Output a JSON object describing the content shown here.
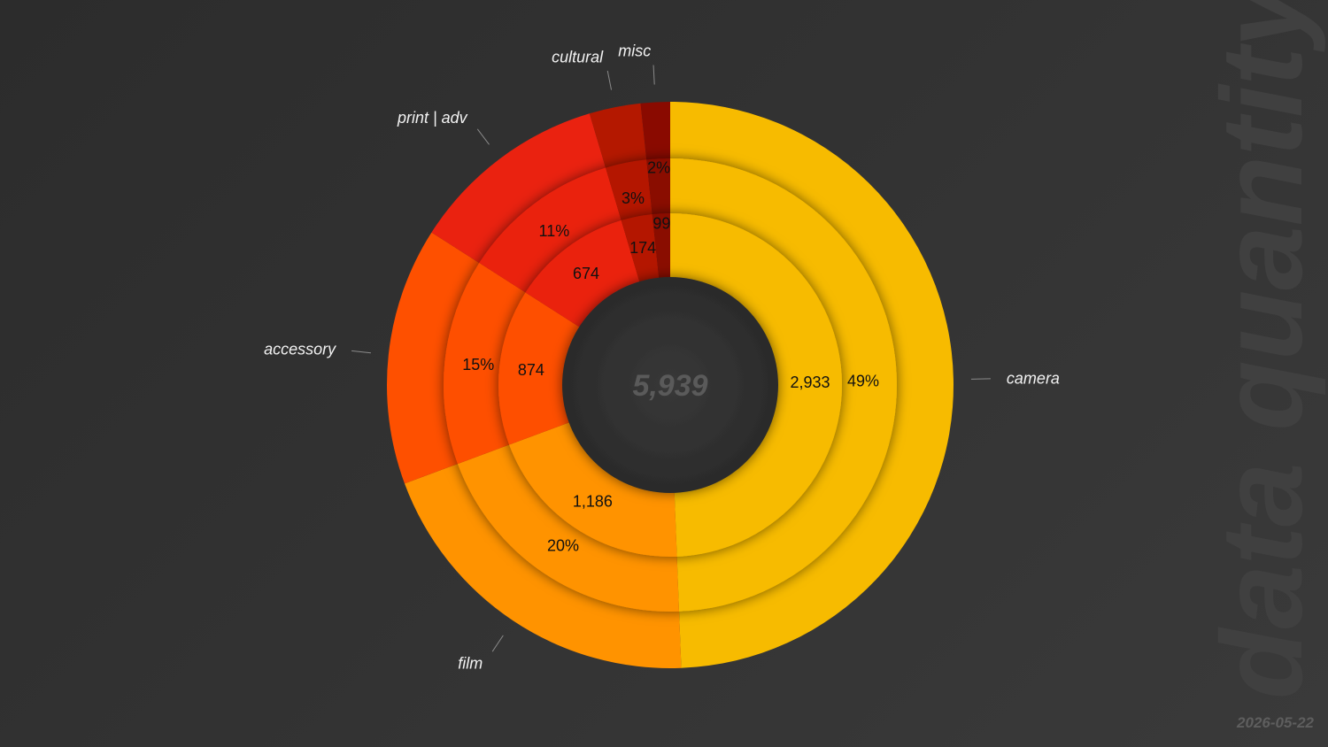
{
  "chart_data": {
    "type": "pie",
    "title": "data quantity",
    "total_label": "5,939",
    "date": "2026-05-22",
    "categories": [
      "camera",
      "film",
      "accessory",
      "print | adv",
      "cultural",
      "misc"
    ],
    "values": [
      2933,
      1186,
      874,
      674,
      174,
      99
    ],
    "value_labels": [
      "2,933",
      "1,186",
      "874",
      "674",
      "174",
      "99"
    ],
    "percent_labels": [
      "49%",
      "20%",
      "15%",
      "11%",
      "3%",
      "2%"
    ],
    "colors": [
      "#f7bb00",
      "#ff9300",
      "#fe5000",
      "#ea2210",
      "#b41800",
      "#8a0a00"
    ],
    "legend": "outer labels with leader lines"
  }
}
